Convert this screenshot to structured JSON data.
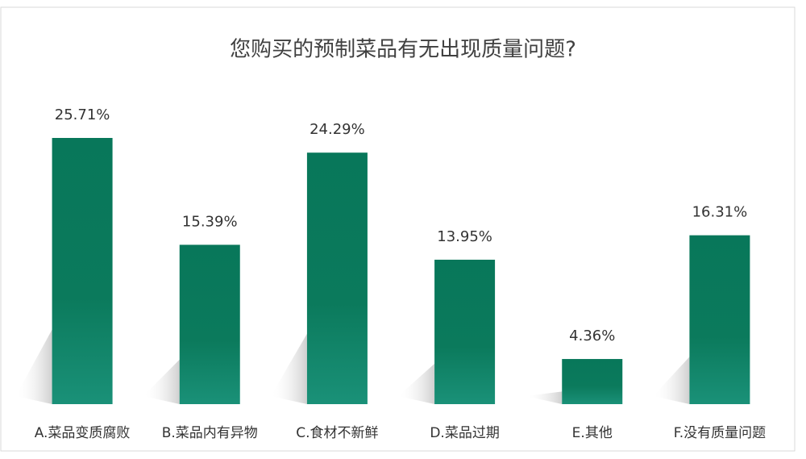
{
  "chart_data": {
    "type": "bar",
    "title": "您购买的预制菜品有无出现质量问题?",
    "categories": [
      "A.菜品变质腐败",
      "B.菜品内有异物",
      "C.食材不新鲜",
      "D.菜品过期",
      "E.其他",
      "F.没有质量问题"
    ],
    "values": [
      25.71,
      15.39,
      24.29,
      13.95,
      4.36,
      16.31
    ],
    "value_labels": [
      "25.71%",
      "15.39%",
      "24.29%",
      "13.95%",
      "4.36%",
      "16.31%"
    ],
    "color": "#0b7a5c"
  }
}
